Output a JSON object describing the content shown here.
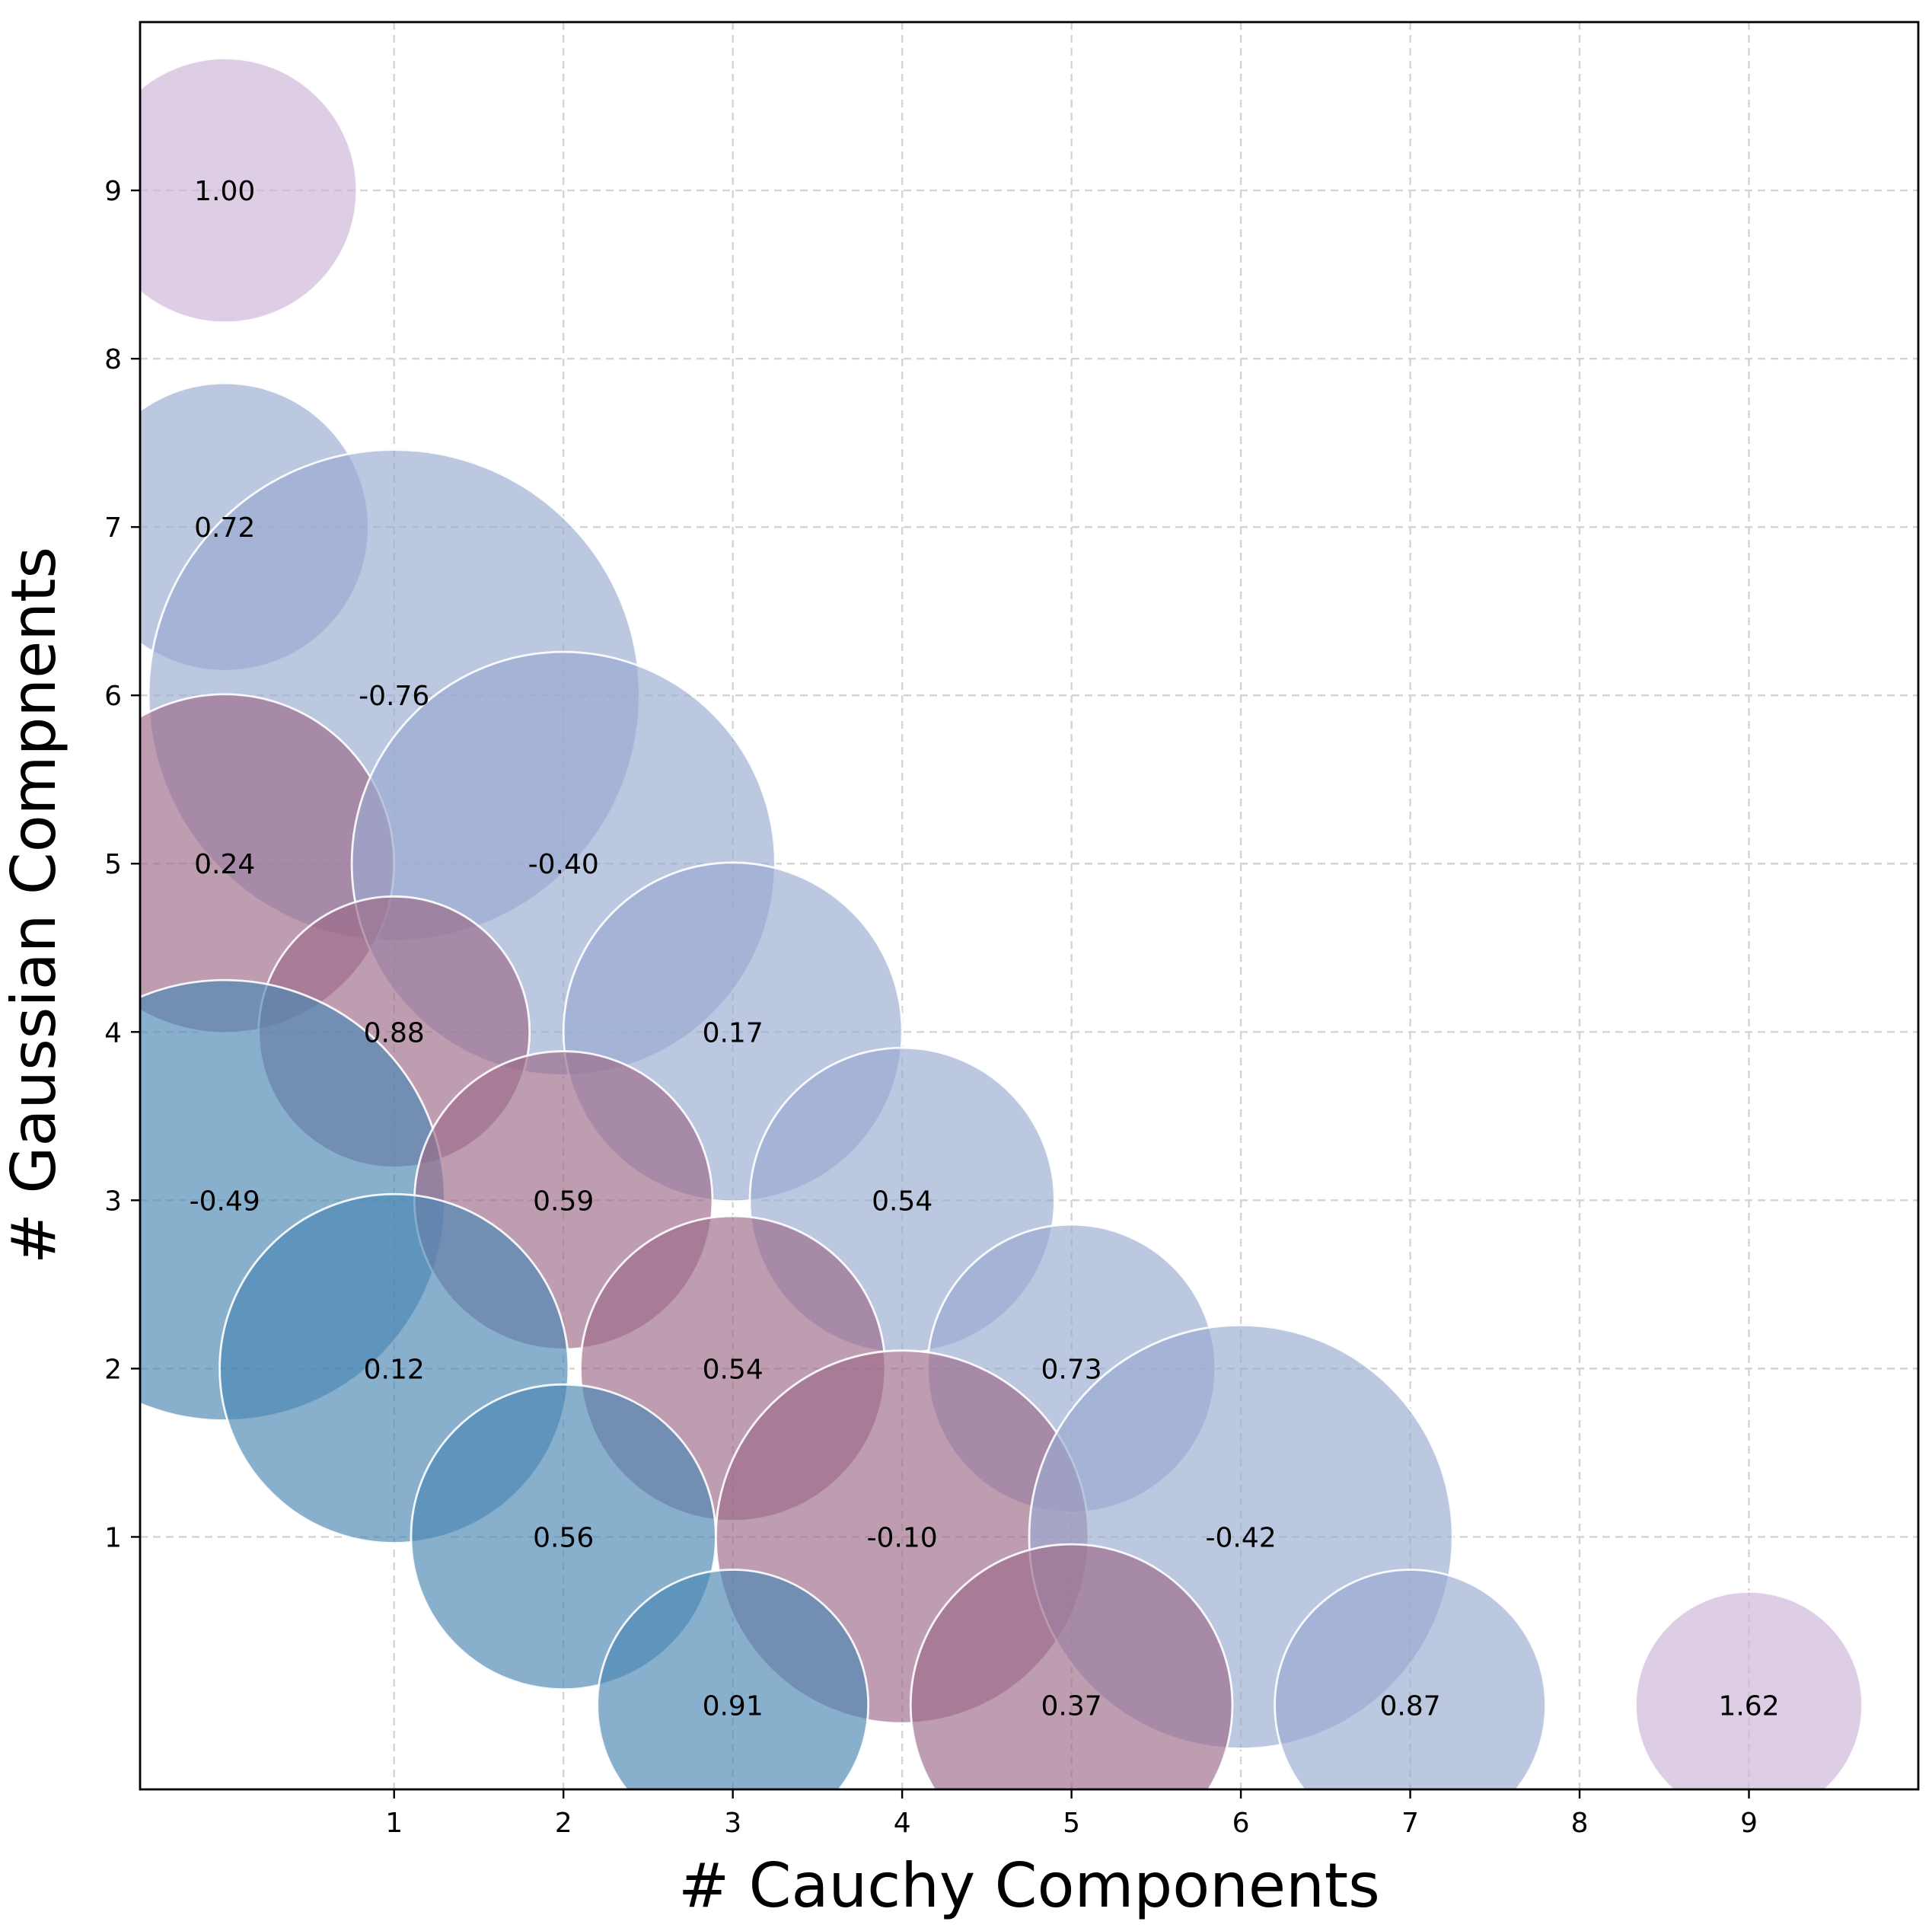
{
  "chart_data": {
    "type": "scatter",
    "subtype": "bubble",
    "title": "",
    "xlabel": "# Cauchy Components",
    "ylabel": "# Gaussian Compnents",
    "xlim": [
      -0.5,
      10
    ],
    "ylim": [
      -0.5,
      10
    ],
    "xticks": [
      1,
      2,
      3,
      4,
      5,
      6,
      7,
      8,
      9
    ],
    "yticks": [
      1,
      2,
      3,
      4,
      5,
      6,
      7,
      8,
      9
    ],
    "grid": true,
    "colors": {
      "lavender": "#cbb5d8",
      "slate_blue": "#9aaad0",
      "mauve": "#9c6a88",
      "steel_blue": "#4a87b3"
    },
    "points": [
      {
        "x": 0,
        "y": 9,
        "label": "1.00",
        "radius": 0.78,
        "color": "lavender"
      },
      {
        "x": 0,
        "y": 7,
        "label": "0.72",
        "radius": 0.85,
        "color": "slate_blue"
      },
      {
        "x": 1,
        "y": 6,
        "label": "-0.76",
        "radius": 1.45,
        "color": "slate_blue"
      },
      {
        "x": 0,
        "y": 5,
        "label": "0.24",
        "radius": 1.0,
        "color": "mauve"
      },
      {
        "x": 2,
        "y": 5,
        "label": "-0.40",
        "radius": 1.25,
        "color": "slate_blue"
      },
      {
        "x": 1,
        "y": 4,
        "label": "0.88",
        "radius": 0.8,
        "color": "mauve"
      },
      {
        "x": 3,
        "y": 4,
        "label": "0.17",
        "radius": 1.0,
        "color": "slate_blue"
      },
      {
        "x": 0,
        "y": 3,
        "label": "-0.49",
        "radius": 1.3,
        "color": "steel_blue"
      },
      {
        "x": 2,
        "y": 3,
        "label": "0.59",
        "radius": 0.88,
        "color": "mauve"
      },
      {
        "x": 4,
        "y": 3,
        "label": "0.54",
        "radius": 0.9,
        "color": "slate_blue"
      },
      {
        "x": 1,
        "y": 2,
        "label": "0.12",
        "radius": 1.03,
        "color": "steel_blue"
      },
      {
        "x": 3,
        "y": 2,
        "label": "0.54",
        "radius": 0.9,
        "color": "mauve"
      },
      {
        "x": 5,
        "y": 2,
        "label": "0.73",
        "radius": 0.85,
        "color": "slate_blue"
      },
      {
        "x": 2,
        "y": 1,
        "label": "0.56",
        "radius": 0.9,
        "color": "steel_blue"
      },
      {
        "x": 4,
        "y": 1,
        "label": "-0.10",
        "radius": 1.1,
        "color": "mauve"
      },
      {
        "x": 6,
        "y": 1,
        "label": "-0.42",
        "radius": 1.25,
        "color": "slate_blue"
      },
      {
        "x": 3,
        "y": 0,
        "label": "0.91",
        "radius": 0.8,
        "color": "steel_blue"
      },
      {
        "x": 5,
        "y": 0,
        "label": "0.37",
        "radius": 0.95,
        "color": "mauve"
      },
      {
        "x": 7,
        "y": 0,
        "label": "0.87",
        "radius": 0.8,
        "color": "slate_blue"
      },
      {
        "x": 9,
        "y": 0,
        "label": "1.62",
        "radius": 0.67,
        "color": "lavender"
      }
    ]
  }
}
